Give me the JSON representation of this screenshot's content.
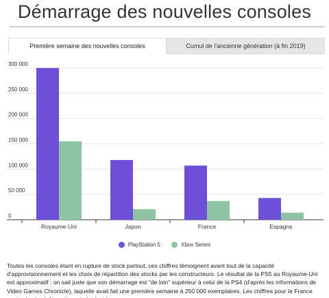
{
  "title": "Démarrage des nouvelles consoles",
  "tabs": [
    {
      "label": "Première semaine des nouvelles consoles",
      "active": true
    },
    {
      "label": "Cumul de l'ancienne génération (à fin 2019)",
      "active": false
    }
  ],
  "colors": {
    "ps5": "#6e4fd8",
    "xbox": "#8fc4a3"
  },
  "chart_data": {
    "type": "bar",
    "categories": [
      "Royaume-Uni",
      "Japon",
      "France",
      "Espagne"
    ],
    "series": [
      {
        "name": "PlayStation 5",
        "values": [
          300000,
          118000,
          107000,
          43000
        ]
      },
      {
        "name": "Xbox Series",
        "values": [
          155000,
          21000,
          37000,
          14000
        ]
      }
    ],
    "ylim": [
      0,
      300000
    ],
    "yticks": [
      0,
      50000,
      100000,
      150000,
      200000,
      250000,
      300000
    ],
    "ytick_labels": [
      "0",
      "50 000",
      "100 000",
      "150 000",
      "200 000",
      "250 000",
      "300 000"
    ],
    "grid": true,
    "legend_position": "bottom"
  },
  "note": "Toutes les consoles étant en rupture de stock partout, ces chiffres témoignent avant tout de la capacité d'approvisionnement et les choix de répartition des stocks par les constructeurs. Le résultat de la PS5 au Royaume-Uni est approximatif : on sait juste que son démarrage est \"de loin\" supérieur à celui de la PS4 (d'après les informations de Video Games Chronicle), laquelle avait fait une première semaine à 250 000 exemplaires. Les chiffres pour la France sont selon les informations de Ludostrie."
}
